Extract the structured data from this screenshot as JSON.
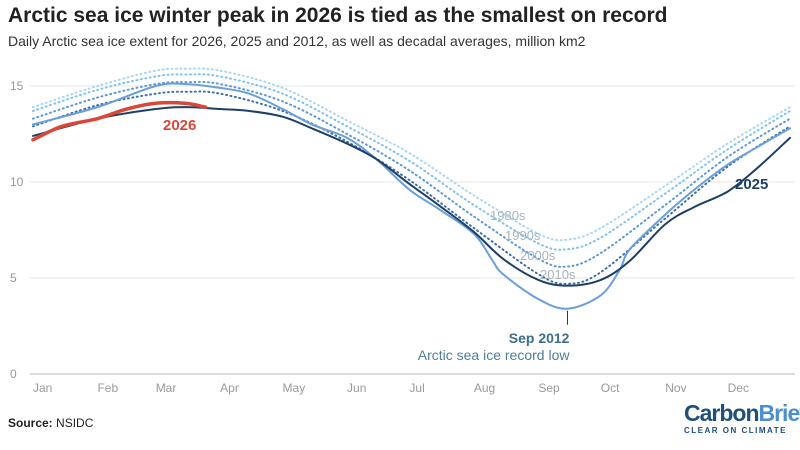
{
  "title": "Arctic sea ice winter peak in 2026 is tied as the smallest on record",
  "subtitle": "Daily Arctic sea ice extent for 2026, 2025 and 2012, as well as decadal averages, million km2",
  "source_label": "Source:",
  "source_value": "NSIDC",
  "logo": {
    "part1": "Carbon",
    "part2": "Brief",
    "tagline": "CLEAR ON CLIMATE"
  },
  "chart_data": {
    "type": "line",
    "xlabel": "",
    "ylabel": "",
    "ylim": [
      0,
      16.5
    ],
    "x_ticks": [
      "Jan",
      "Feb",
      "Mar",
      "Apr",
      "May",
      "Jun",
      "Jul",
      "Aug",
      "Sep",
      "Oct",
      "Nov",
      "Dec"
    ],
    "y_ticks": [
      0,
      5,
      10,
      15
    ],
    "grid": true,
    "series": [
      {
        "name": "1980s",
        "label": "1980s",
        "color": "#a9d6f5",
        "dash": true,
        "days": [
          1,
          32,
          60,
          75,
          91,
          121,
          152,
          182,
          213,
          244,
          258,
          274,
          305,
          335,
          365
        ],
        "values": [
          13.9,
          15.0,
          15.8,
          15.9,
          15.8,
          14.9,
          13.2,
          11.5,
          9.3,
          7.3,
          7.0,
          7.6,
          9.8,
          12.0,
          13.9
        ]
      },
      {
        "name": "1990s",
        "label": "1990s",
        "color": "#7fc1ef",
        "dash": true,
        "days": [
          1,
          32,
          60,
          75,
          91,
          121,
          152,
          182,
          213,
          244,
          258,
          274,
          305,
          335,
          365
        ],
        "values": [
          13.7,
          14.8,
          15.5,
          15.6,
          15.5,
          14.6,
          12.9,
          11.1,
          8.8,
          6.8,
          6.5,
          7.1,
          9.4,
          11.7,
          13.7
        ]
      },
      {
        "name": "2000s",
        "label": "2000s",
        "color": "#5b98d6",
        "dash": true,
        "days": [
          1,
          32,
          60,
          75,
          91,
          121,
          152,
          182,
          213,
          244,
          258,
          274,
          305,
          335,
          365
        ],
        "values": [
          13.3,
          14.4,
          15.1,
          15.2,
          15.1,
          14.2,
          12.5,
          10.6,
          8.2,
          6.0,
          5.6,
          6.3,
          8.8,
          11.3,
          13.3
        ]
      },
      {
        "name": "2010s",
        "label": "2010s",
        "color": "#3e6fa8",
        "dash": true,
        "days": [
          1,
          32,
          60,
          75,
          91,
          121,
          152,
          182,
          213,
          244,
          258,
          274,
          305,
          335,
          365
        ],
        "values": [
          12.9,
          14.0,
          14.6,
          14.7,
          14.6,
          13.7,
          12.1,
          10.1,
          7.6,
          5.2,
          4.7,
          5.3,
          8.1,
          10.8,
          12.9
        ]
      },
      {
        "name": "2012",
        "label": "Sep 2012",
        "color": "#6b9fd8",
        "dash": false,
        "days": [
          1,
          32,
          60,
          75,
          91,
          105,
          121,
          135,
          152,
          166,
          182,
          196,
          213,
          222,
          227,
          244,
          258,
          274,
          283,
          288,
          305,
          319,
          335,
          349,
          365
        ],
        "values": [
          13.0,
          13.9,
          15.0,
          15.1,
          14.9,
          14.6,
          13.8,
          13.0,
          12.3,
          11.2,
          9.6,
          8.6,
          7.3,
          5.9,
          5.2,
          3.9,
          3.4,
          4.1,
          5.4,
          6.5,
          8.3,
          9.6,
          10.9,
          11.8,
          12.8
        ]
      },
      {
        "name": "2025",
        "label": "2025",
        "color": "#1e3f66",
        "dash": false,
        "days": [
          1,
          32,
          60,
          75,
          91,
          105,
          121,
          135,
          152,
          166,
          182,
          196,
          213,
          227,
          244,
          258,
          274,
          288,
          305,
          319,
          335,
          349,
          365
        ],
        "values": [
          12.4,
          13.3,
          13.8,
          13.9,
          13.8,
          13.7,
          13.4,
          12.8,
          12.0,
          11.2,
          9.9,
          8.8,
          7.4,
          6.0,
          4.9,
          4.6,
          4.9,
          5.9,
          7.8,
          8.7,
          9.5,
          10.7,
          12.3
        ]
      },
      {
        "name": "2026",
        "label": "2026",
        "color": "#d9473a",
        "dash": false,
        "days": [
          1,
          15,
          32,
          46,
          60,
          74,
          84
        ],
        "values": [
          12.2,
          12.9,
          13.3,
          13.8,
          14.1,
          14.1,
          13.9
        ]
      }
    ],
    "annotation": {
      "title": "Sep 2012",
      "text": "Arctic sea ice record low",
      "day": 258,
      "value": 3.4
    }
  }
}
